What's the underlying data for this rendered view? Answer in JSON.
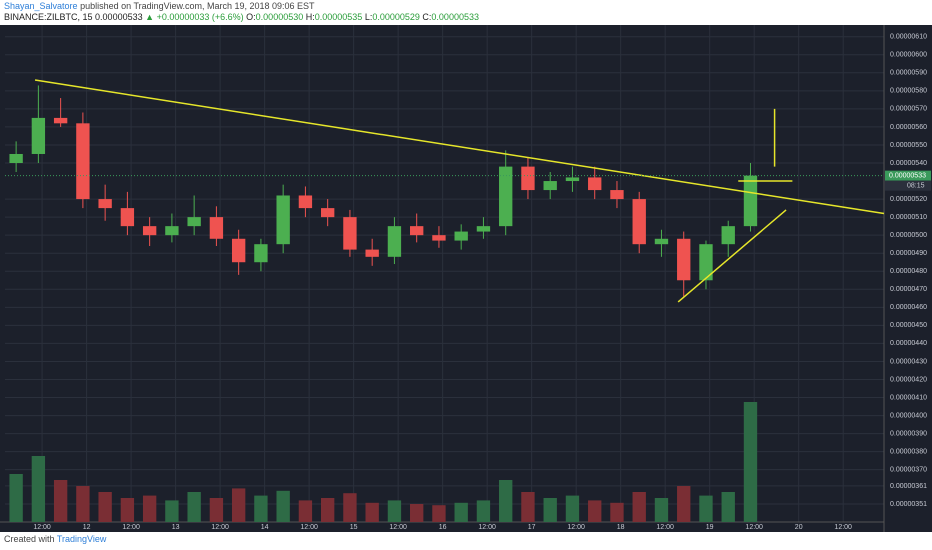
{
  "header": {
    "author": "Shayan_Salvatore",
    "published": "published on TradingView.com, March 19, 2018 09:06 EST"
  },
  "footer": {
    "created": "Created with",
    "brand": "TradingView"
  },
  "chart_data": {
    "type": "candlestick",
    "symbol": "BINANCE:ZILBTC, 15",
    "last": "0.00000533",
    "change": "+0.00000033 (+6.6%)",
    "ohlc_labels": [
      "O:",
      "H:",
      "L:",
      "C:"
    ],
    "ohlc_values": [
      "0.00000530",
      "0.00000535",
      "0.00000529",
      "0.00000533"
    ],
    "price_label": "0.00000533",
    "countdown": "08:15",
    "x": [
      3,
      9,
      15,
      21,
      27,
      33,
      39,
      45,
      51,
      57,
      63,
      69,
      75,
      81,
      87,
      93,
      99,
      105,
      111,
      117,
      123,
      129,
      135,
      141,
      147,
      153,
      159,
      165,
      171,
      177,
      183,
      189,
      195,
      201
    ],
    "open": [
      5.4e-06,
      5.45e-06,
      5.65e-06,
      5.62e-06,
      5.2e-06,
      5.15e-06,
      5.05e-06,
      5e-06,
      5.05e-06,
      5.1e-06,
      4.98e-06,
      4.85e-06,
      4.95e-06,
      5.22e-06,
      5.15e-06,
      5.1e-06,
      4.92e-06,
      4.88e-06,
      5.05e-06,
      5e-06,
      4.97e-06,
      5.02e-06,
      5.05e-06,
      5.38e-06,
      5.25e-06,
      5.3e-06,
      5.32e-06,
      5.25e-06,
      5.2e-06,
      4.95e-06,
      4.98e-06,
      4.75e-06,
      4.95e-06,
      5.05e-06
    ],
    "high": [
      5.52e-06,
      5.83e-06,
      5.76e-06,
      5.68e-06,
      5.28e-06,
      5.24e-06,
      5.1e-06,
      5.12e-06,
      5.22e-06,
      5.16e-06,
      5.03e-06,
      4.98e-06,
      5.28e-06,
      5.27e-06,
      5.2e-06,
      5.14e-06,
      4.98e-06,
      5.1e-06,
      5.12e-06,
      5.05e-06,
      5.06e-06,
      5.1e-06,
      5.47e-06,
      5.43e-06,
      5.35e-06,
      5.38e-06,
      5.38e-06,
      5.3e-06,
      5.24e-06,
      5.03e-06,
      5.02e-06,
      4.97e-06,
      5.08e-06,
      5.4e-06
    ],
    "low": [
      5.35e-06,
      5.4e-06,
      5.6e-06,
      5.15e-06,
      5.08e-06,
      5e-06,
      4.94e-06,
      4.96e-06,
      5e-06,
      4.94e-06,
      4.78e-06,
      4.8e-06,
      4.9e-06,
      5.1e-06,
      5.05e-06,
      4.88e-06,
      4.83e-06,
      4.84e-06,
      4.96e-06,
      4.93e-06,
      4.92e-06,
      4.98e-06,
      5e-06,
      5.2e-06,
      5.2e-06,
      5.24e-06,
      5.2e-06,
      5.15e-06,
      4.9e-06,
      4.88e-06,
      4.66e-06,
      4.7e-06,
      4.88e-06,
      5.02e-06
    ],
    "close": [
      5.45e-06,
      5.65e-06,
      5.62e-06,
      5.2e-06,
      5.15e-06,
      5.05e-06,
      5e-06,
      5.05e-06,
      5.1e-06,
      4.98e-06,
      4.85e-06,
      4.95e-06,
      5.22e-06,
      5.15e-06,
      5.1e-06,
      4.92e-06,
      4.88e-06,
      5.05e-06,
      5e-06,
      4.97e-06,
      5.02e-06,
      5.05e-06,
      5.38e-06,
      5.25e-06,
      5.3e-06,
      5.32e-06,
      5.25e-06,
      5.2e-06,
      4.95e-06,
      4.98e-06,
      4.75e-06,
      4.95e-06,
      5.05e-06,
      5.33e-06
    ],
    "volume": [
      40,
      55,
      35,
      30,
      25,
      20,
      22,
      18,
      25,
      20,
      28,
      22,
      26,
      18,
      20,
      24,
      16,
      18,
      15,
      14,
      16,
      18,
      35,
      25,
      20,
      22,
      18,
      16,
      25,
      20,
      30,
      22,
      25,
      100
    ],
    "volume_lim": [
      0,
      100
    ],
    "up_color": "#4caf50",
    "down_color": "#ef5350",
    "volume_up_color": "#2e6b46",
    "volume_down_color": "#7a2e34",
    "trendlines": [
      {
        "x": [
          8.1,
          237
        ],
        "y": [
          5.86e-06,
          5.12e-06
        ],
        "color": "#e6e62a"
      },
      {
        "x": [
          181.5,
          210.6
        ],
        "y": [
          4.63e-06,
          5.14e-06
        ],
        "color": "#e6e62a"
      },
      {
        "x": [
          207.5,
          207.5
        ],
        "y": [
          5.7e-06,
          5.38e-06
        ],
        "color": "#e6e62a"
      },
      {
        "x": [
          197.7,
          212.3
        ],
        "y": [
          5.3e-06,
          5.3e-06
        ],
        "color": "#e6e62a"
      }
    ],
    "xlim": [
      0,
      237
    ],
    "xticks": [
      {
        "value": 10,
        "label": "12:00"
      },
      {
        "value": 22,
        "label": "12"
      },
      {
        "value": 34,
        "label": "12:00"
      },
      {
        "value": 46,
        "label": "13"
      },
      {
        "value": 58,
        "label": "12:00"
      },
      {
        "value": 70,
        "label": "14"
      },
      {
        "value": 82,
        "label": "12:00"
      },
      {
        "value": 94,
        "label": "15"
      },
      {
        "value": 106,
        "label": "12:00"
      },
      {
        "value": 118,
        "label": "16"
      },
      {
        "value": 130,
        "label": "12:00"
      },
      {
        "value": 142,
        "label": "17"
      },
      {
        "value": 154,
        "label": "12:00"
      },
      {
        "value": 166,
        "label": "18"
      },
      {
        "value": 178,
        "label": "12:00"
      },
      {
        "value": 190,
        "label": "19"
      },
      {
        "value": 202,
        "label": "12:00"
      },
      {
        "value": 214,
        "label": "20"
      },
      {
        "value": 226,
        "label": "12:00"
      }
    ],
    "ylim": [
      3.41e-06,
      6.165e-06
    ],
    "yticks": [
      {
        "value": 6.1e-06,
        "label": "0.00000610"
      },
      {
        "value": 6e-06,
        "label": "0.00000600"
      },
      {
        "value": 5.9e-06,
        "label": "0.00000590"
      },
      {
        "value": 5.8e-06,
        "label": "0.00000580"
      },
      {
        "value": 5.7e-06,
        "label": "0.00000570"
      },
      {
        "value": 5.6e-06,
        "label": "0.00000560"
      },
      {
        "value": 5.5e-06,
        "label": "0.00000550"
      },
      {
        "value": 5.4e-06,
        "label": "0.00000540"
      },
      {
        "value": 5.2e-06,
        "label": "0.00000520"
      },
      {
        "value": 5.1e-06,
        "label": "0.00000510"
      },
      {
        "value": 5e-06,
        "label": "0.00000500"
      },
      {
        "value": 4.9e-06,
        "label": "0.00000490"
      },
      {
        "value": 4.8e-06,
        "label": "0.00000480"
      },
      {
        "value": 4.7e-06,
        "label": "0.00000470"
      },
      {
        "value": 4.6e-06,
        "label": "0.00000460"
      },
      {
        "value": 4.5e-06,
        "label": "0.00000450"
      },
      {
        "value": 4.4e-06,
        "label": "0.00000440"
      },
      {
        "value": 4.3e-06,
        "label": "0.00000430"
      },
      {
        "value": 4.2e-06,
        "label": "0.00000420"
      },
      {
        "value": 4.1e-06,
        "label": "0.00000410"
      },
      {
        "value": 4e-06,
        "label": "0.00000400"
      },
      {
        "value": 3.9e-06,
        "label": "0.00000390"
      },
      {
        "value": 3.8e-06,
        "label": "0.00000380"
      },
      {
        "value": 3.7e-06,
        "label": "0.00000370"
      },
      {
        "value": 3.61e-06,
        "label": "0.00000361"
      },
      {
        "value": 3.51e-06,
        "label": "0.00000351"
      }
    ],
    "grid": true,
    "background": "#1c202b",
    "grid_color": "#2b303c",
    "price_label_color": "#3a9a5b"
  }
}
